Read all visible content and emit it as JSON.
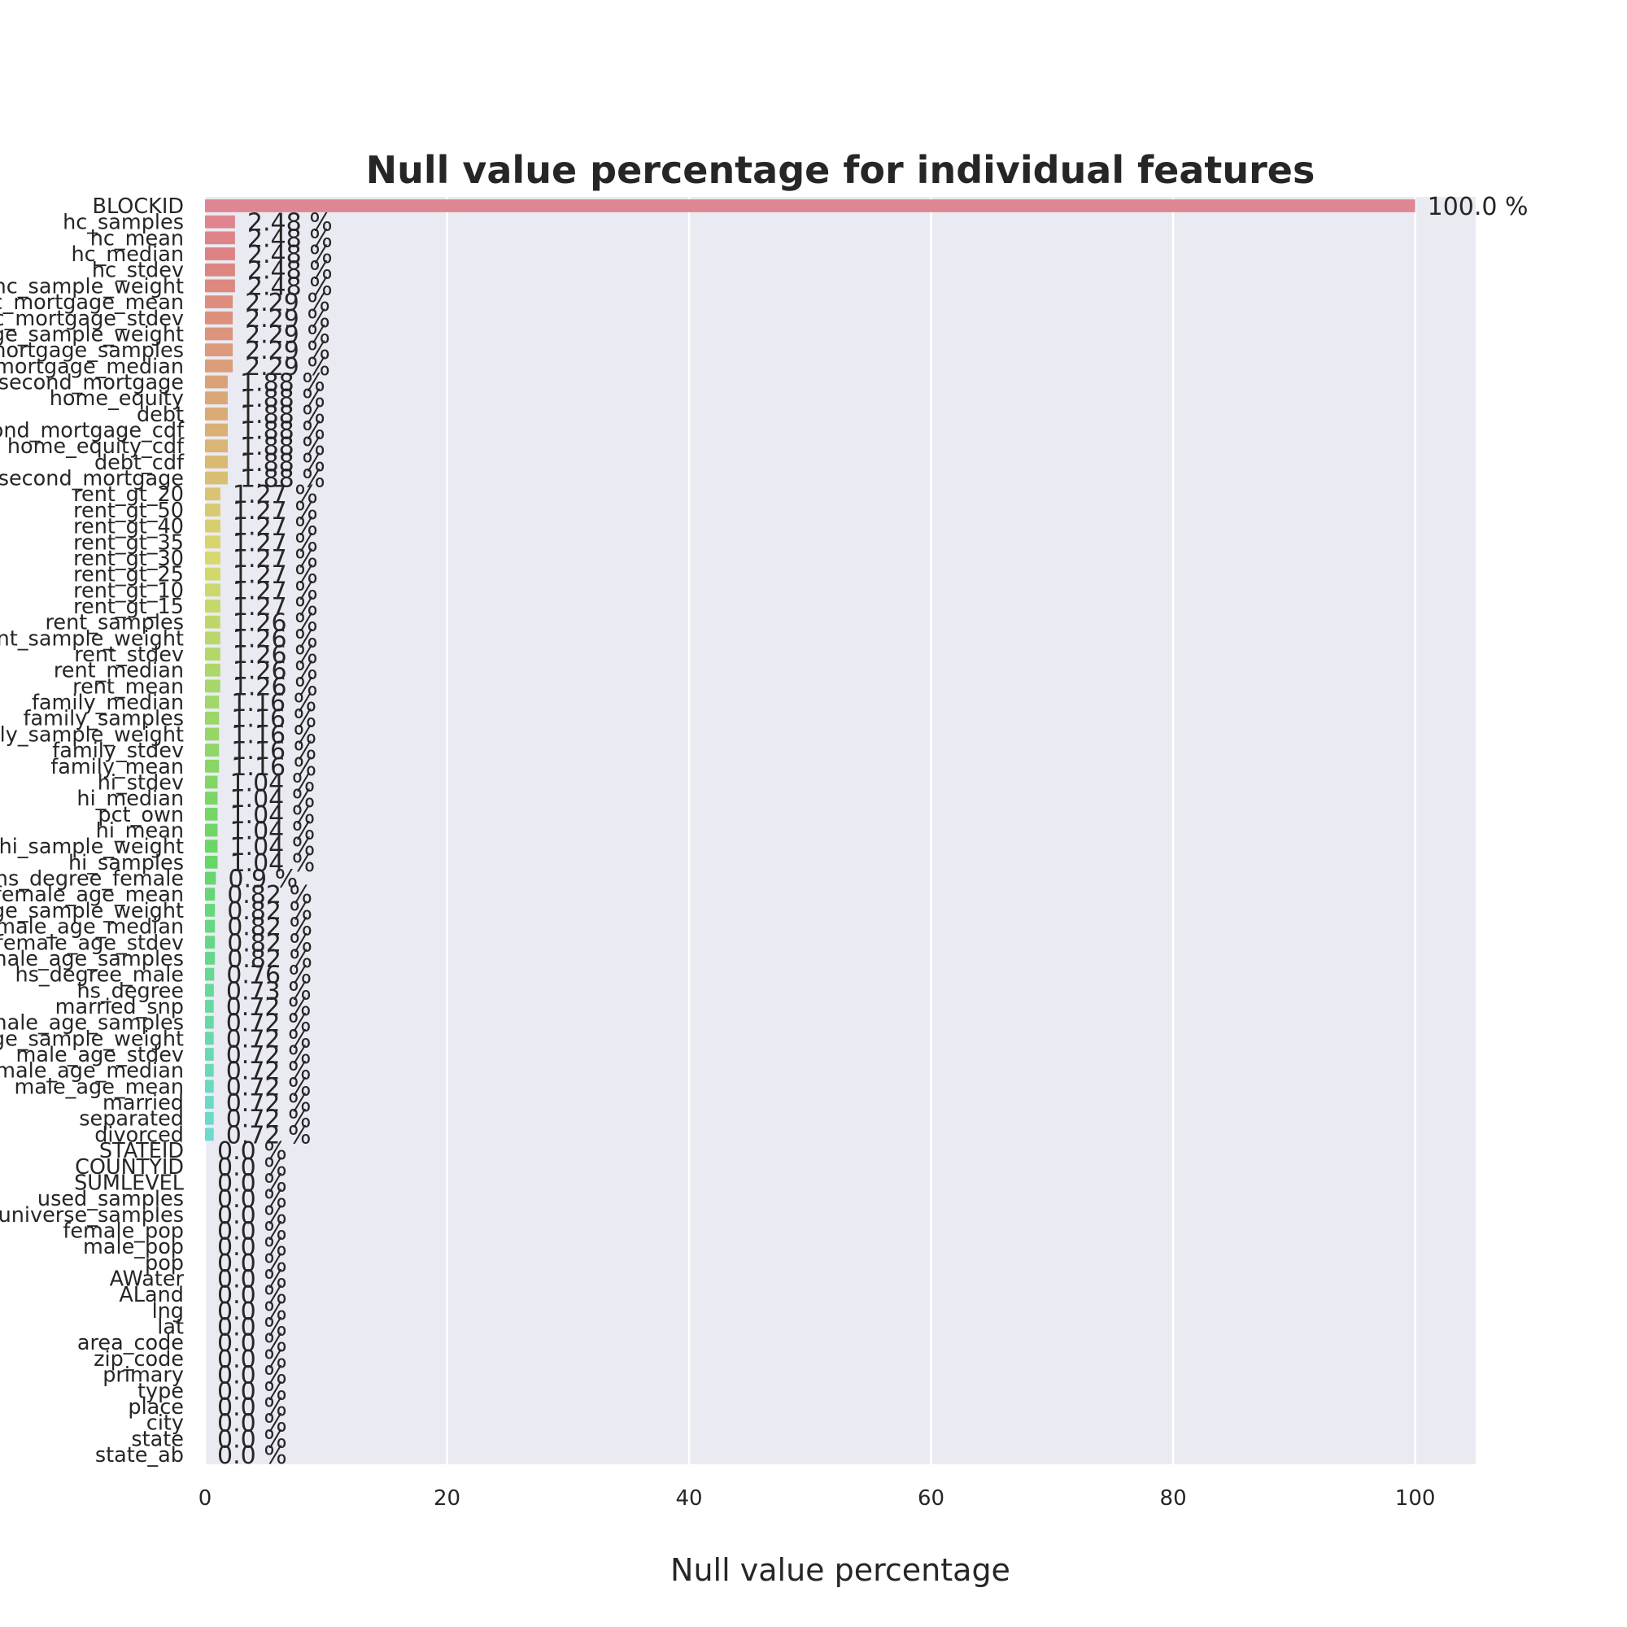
{
  "chart_data": {
    "type": "bar",
    "orientation": "horizontal",
    "title": "Null value percentage for individual features",
    "xlabel": "Null value percentage",
    "ylabel": "",
    "xlim": [
      0,
      105
    ],
    "xticks": [
      "0",
      "20",
      "40",
      "60",
      "80",
      "100"
    ],
    "grid": true,
    "label_suffix": " %",
    "categories": [
      "BLOCKID",
      "hc_samples",
      "hc_mean",
      "hc_median",
      "hc_stdev",
      "hc_sample_weight",
      "hc_mortgage_mean",
      "hc_mortgage_stdev",
      "hc_mortgage_sample_weight",
      "hc_mortgage_samples",
      "hc_mortgage_median",
      "second_mortgage",
      "home_equity",
      "debt",
      "second_mortgage_cdf",
      "home_equity_cdf",
      "debt_cdf",
      "home_equity_second_mortgage",
      "rent_gt_20",
      "rent_gt_50",
      "rent_gt_40",
      "rent_gt_35",
      "rent_gt_30",
      "rent_gt_25",
      "rent_gt_10",
      "rent_gt_15",
      "rent_samples",
      "rent_sample_weight",
      "rent_stdev",
      "rent_median",
      "rent_mean",
      "family_median",
      "family_samples",
      "family_sample_weight",
      "family_stdev",
      "family_mean",
      "hi_stdev",
      "hi_median",
      "pct_own",
      "hi_mean",
      "hi_sample_weight",
      "hi_samples",
      "hs_degree_female",
      "female_age_mean",
      "female_age_sample_weight",
      "female_age_median",
      "female_age_stdev",
      "female_age_samples",
      "hs_degree_male",
      "hs_degree",
      "married_snp",
      "male_age_samples",
      "male_age_sample_weight",
      "male_age_stdev",
      "male_age_median",
      "male_age_mean",
      "married",
      "separated",
      "divorced",
      "STATEID",
      "COUNTYID",
      "SUMLEVEL",
      "used_samples",
      "universe_samples",
      "female_pop",
      "male_pop",
      "pop",
      "AWater",
      "ALand",
      "lng",
      "lat",
      "area_code",
      "zip_code",
      "primary",
      "type",
      "place",
      "city",
      "state",
      "state_ab"
    ],
    "values": [
      100.0,
      2.48,
      2.48,
      2.48,
      2.48,
      2.48,
      2.29,
      2.29,
      2.29,
      2.29,
      2.29,
      1.88,
      1.88,
      1.88,
      1.88,
      1.88,
      1.88,
      1.88,
      1.27,
      1.27,
      1.27,
      1.27,
      1.27,
      1.27,
      1.27,
      1.27,
      1.26,
      1.26,
      1.26,
      1.26,
      1.26,
      1.16,
      1.16,
      1.16,
      1.16,
      1.16,
      1.04,
      1.04,
      1.04,
      1.04,
      1.04,
      1.04,
      0.9,
      0.82,
      0.82,
      0.82,
      0.82,
      0.82,
      0.76,
      0.73,
      0.72,
      0.72,
      0.72,
      0.72,
      0.72,
      0.72,
      0.72,
      0.72,
      0.72,
      0.0,
      0.0,
      0.0,
      0.0,
      0.0,
      0.0,
      0.0,
      0.0,
      0.0,
      0.0,
      0.0,
      0.0,
      0.0,
      0.0,
      0.0,
      0.0,
      0.0,
      0.0,
      0.0,
      0.0
    ],
    "colors": {
      "background": "#eaeaf2",
      "grid": "#ffffff",
      "palette": "husl",
      "first_bar": "#e8909d",
      "last_bar": "#a6a8e3"
    }
  }
}
